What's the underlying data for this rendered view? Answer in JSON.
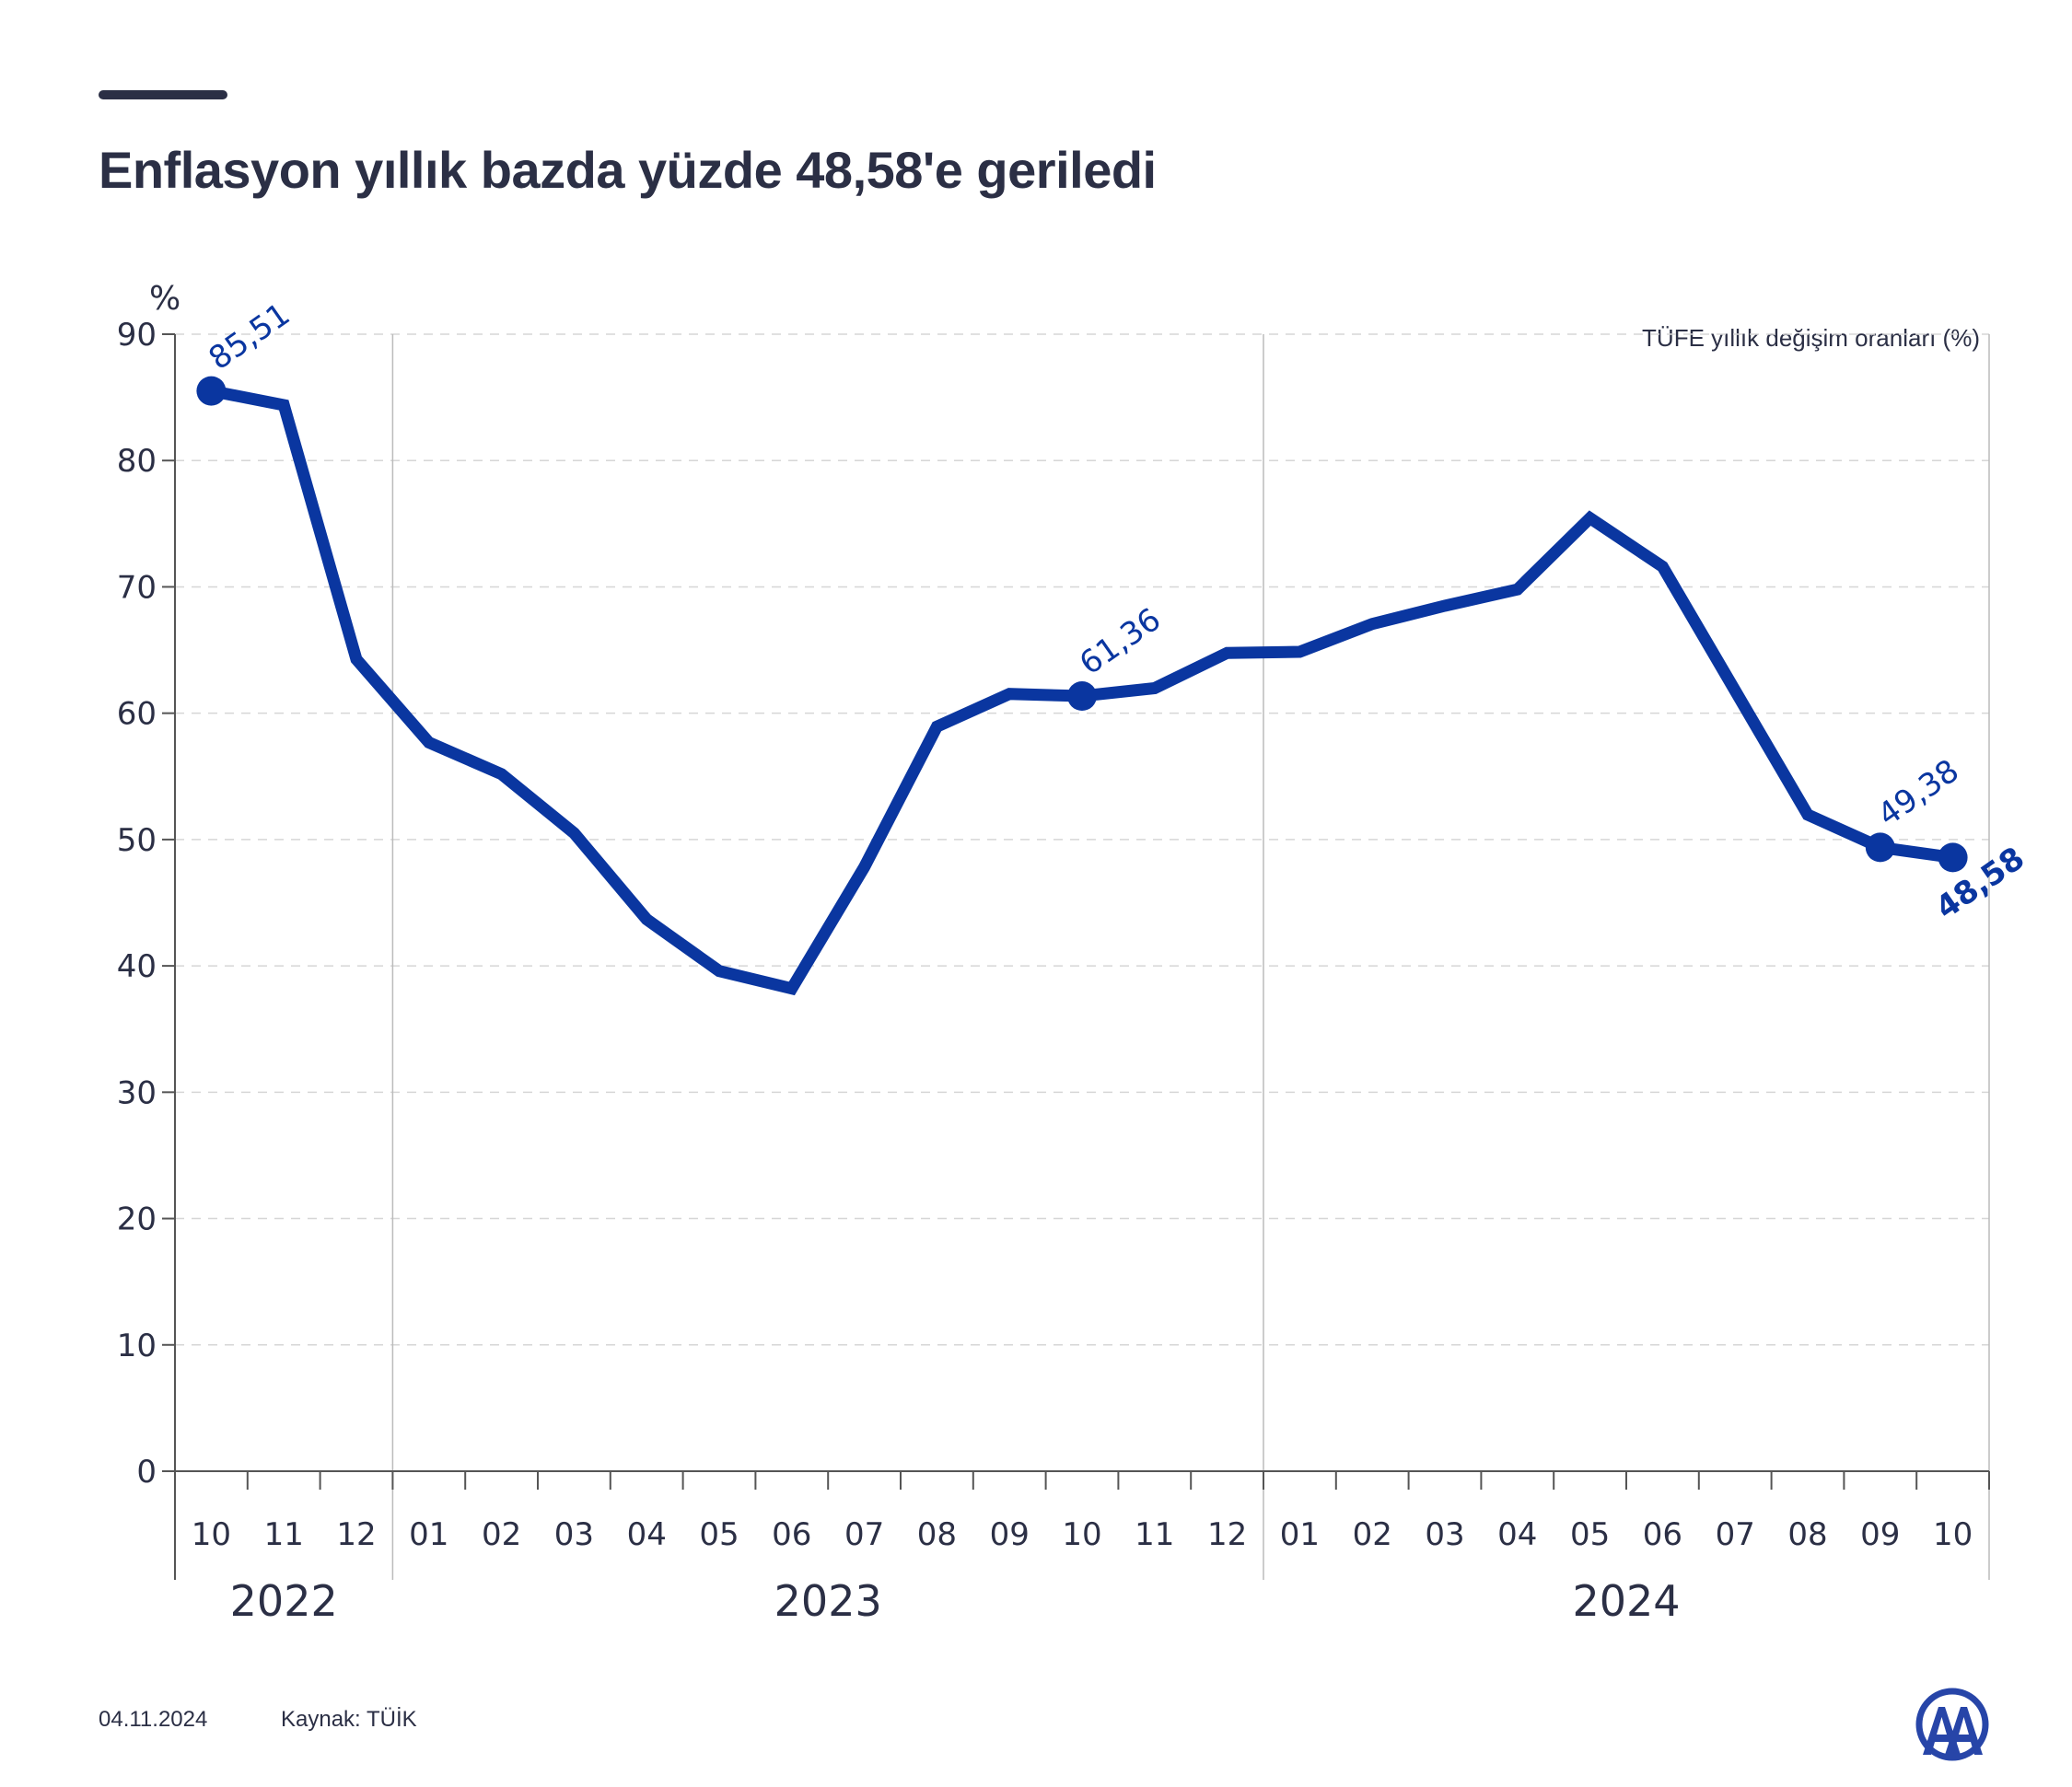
{
  "header": {
    "title": "Enflasyon yıllık bazda yüzde 48,58'e geriledi"
  },
  "footer": {
    "date": "04.11.2024",
    "source": "Kaynak: TÜİK"
  },
  "logo": {
    "icon": "aa-logo-icon",
    "color": "#2745a8"
  },
  "chart_data": {
    "type": "line",
    "title": "Enflasyon yıllık bazda yüzde 48,58'e geriledi",
    "legend": "TÜFE yıllık değişim oranları (%)",
    "ylabel": "%",
    "ylim": [
      0,
      90
    ],
    "yticks": [
      "0",
      "10",
      "20",
      "30",
      "40",
      "50",
      "60",
      "70",
      "80",
      "90"
    ],
    "grid": true,
    "line_color": "#0a36a0",
    "categories": [
      "10",
      "11",
      "12",
      "01",
      "02",
      "03",
      "04",
      "05",
      "06",
      "07",
      "08",
      "09",
      "10",
      "11",
      "12",
      "01",
      "02",
      "03",
      "04",
      "05",
      "06",
      "07",
      "08",
      "09",
      "10"
    ],
    "years": [
      {
        "label": "2022",
        "start": 0,
        "end": 2
      },
      {
        "label": "2023",
        "start": 3,
        "end": 14
      },
      {
        "label": "2024",
        "start": 15,
        "end": 24
      }
    ],
    "series": [
      {
        "values": [
          85.51,
          84.39,
          64.27,
          57.68,
          55.18,
          50.51,
          43.68,
          39.59,
          38.21,
          47.83,
          58.94,
          61.53,
          61.36,
          61.98,
          64.77,
          64.86,
          67.07,
          68.5,
          69.8,
          75.45,
          71.6,
          61.78,
          51.97,
          49.38,
          48.58
        ]
      }
    ],
    "annotations": [
      {
        "index": 0,
        "text": "85,51",
        "bold": false,
        "position": "above"
      },
      {
        "index": 12,
        "text": "61,36",
        "bold": false,
        "position": "above"
      },
      {
        "index": 23,
        "text": "49,38",
        "bold": false,
        "position": "above"
      },
      {
        "index": 24,
        "text": "48,58",
        "bold": true,
        "position": "below"
      }
    ]
  }
}
